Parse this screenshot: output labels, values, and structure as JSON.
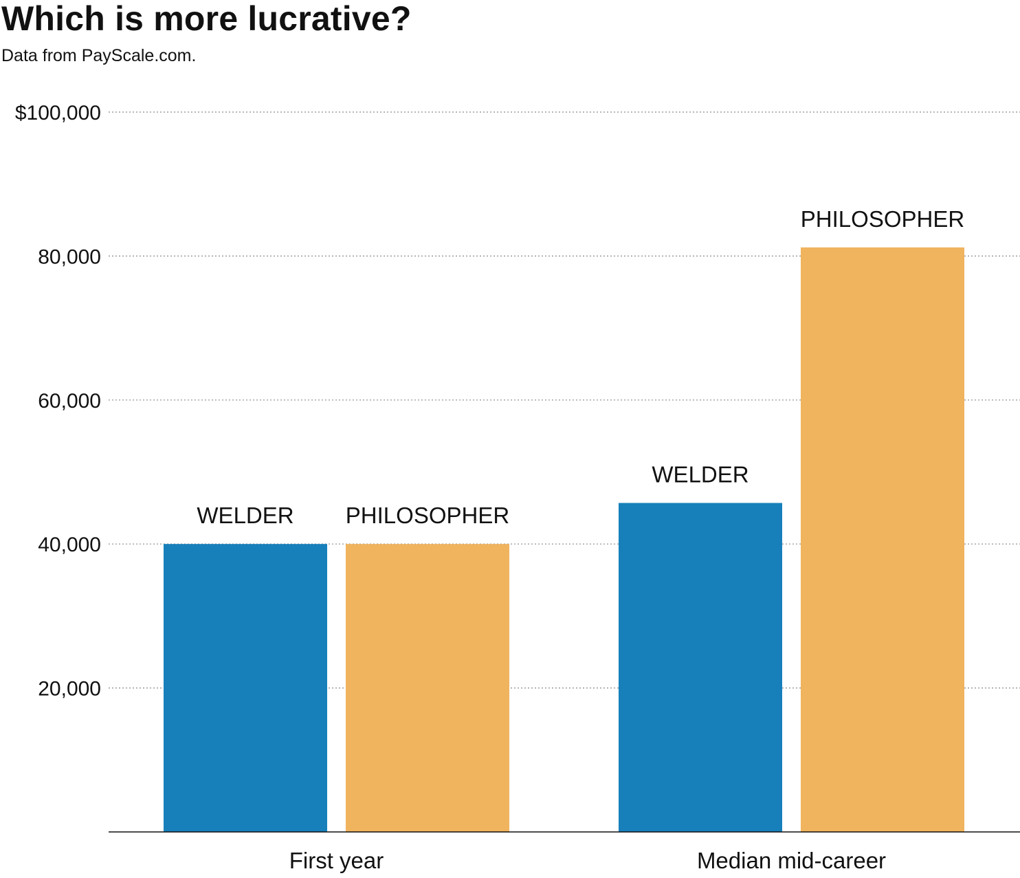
{
  "chart_data": {
    "type": "bar",
    "title": "Which is more lucrative?",
    "subtitle": "Data from PayScale.com.",
    "categories": [
      "First year",
      "Median mid-career"
    ],
    "series": [
      {
        "name": "WELDER",
        "color": "#1780bb",
        "values": [
          40000,
          45700
        ]
      },
      {
        "name": "PHILOSOPHER",
        "color": "#f0b35e",
        "values": [
          40000,
          81200
        ]
      }
    ],
    "ylim": [
      0,
      100000
    ],
    "yticks": [
      20000,
      40000,
      60000,
      80000,
      100000
    ],
    "ytick_labels": [
      "20,000",
      "40,000",
      "60,000",
      "80,000",
      "$100,000"
    ],
    "grid": true,
    "legend": "none"
  }
}
